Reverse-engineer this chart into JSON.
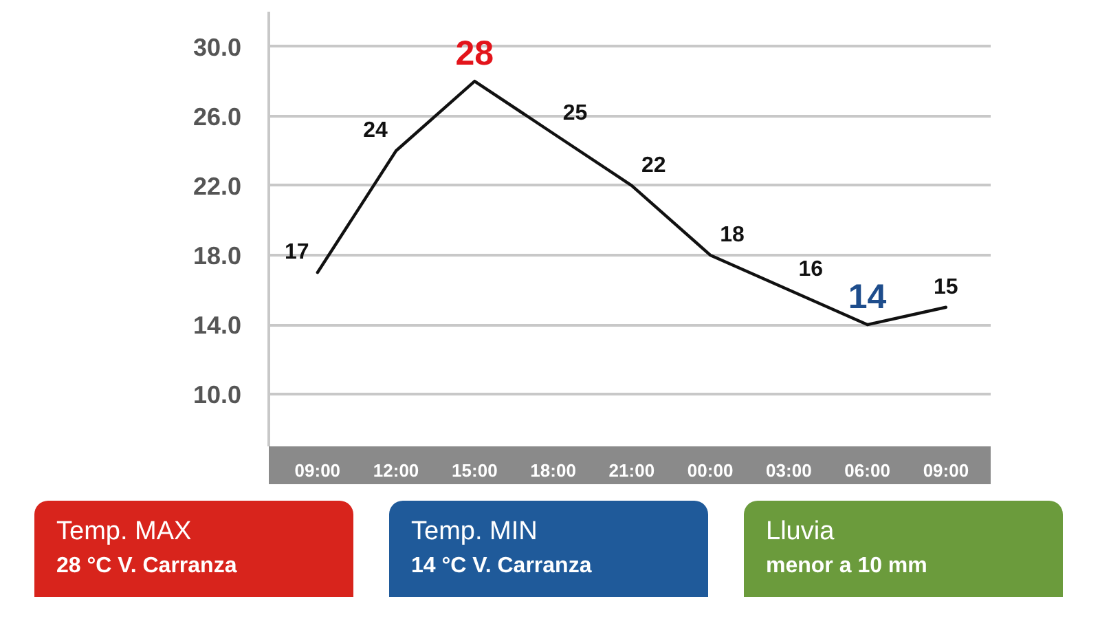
{
  "chart_data": {
    "type": "line",
    "categories": [
      "09:00",
      "12:00",
      "15:00",
      "18:00",
      "21:00",
      "00:00",
      "03:00",
      "06:00",
      "09:00"
    ],
    "series": [
      {
        "color": "#111111",
        "colors": [
          "#111111",
          "#111111",
          "#e3141b",
          "#111111",
          "#111111",
          "#111111",
          "#111111",
          "#1e4d8c",
          "#111111"
        ],
        "values": [
          17,
          24,
          28,
          25,
          22,
          18,
          16,
          14,
          15
        ]
      }
    ],
    "ylim": [
      7,
      32
    ],
    "yticks": [
      {
        "value": 30,
        "label": "30.0"
      },
      {
        "value": 26,
        "label": "26.0"
      },
      {
        "value": 22,
        "label": "22.0"
      },
      {
        "value": 18,
        "label": "18.0"
      },
      {
        "value": 14,
        "label": "14.0"
      },
      {
        "value": 10,
        "label": "10.0"
      }
    ],
    "grid": "y",
    "data_labels": true,
    "line_style": "solid",
    "marker": "none",
    "annotations": [
      "Temp. MAX",
      "28 °C V. Carranza",
      "Temp. MIN",
      "14 °C V. Carranza",
      "Lluvia",
      "menor a 10 mm"
    ]
  }
}
